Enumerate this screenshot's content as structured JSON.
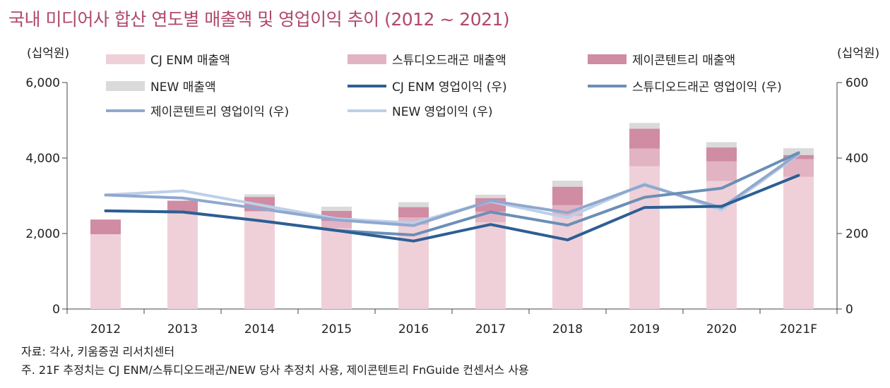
{
  "title": "국내 미디어사 합산 연도별 매출액 및 영업이익 추이 (2012 ~ 2021)",
  "notes": {
    "source": "자료: 각사, 키움증권 리서치센터",
    "footnote": "주. 21F 추정치는 CJ ENM/스튜디오드래곤/NEW 당사 추정치 사용, 제이콘텐트리 FnGuide 컨센서스 사용"
  },
  "chart_data": {
    "type": "bar",
    "stacked": true,
    "categories": [
      "2012",
      "2013",
      "2014",
      "2015",
      "2016",
      "2017",
      "2018",
      "2019",
      "2020",
      "2021F"
    ],
    "y_left": {
      "label": "(십억원)",
      "ylim": [
        0,
        6000
      ],
      "ticks": [
        "0",
        "2,000",
        "4,000",
        "6,000"
      ]
    },
    "y_right": {
      "label": "(십억원)",
      "ylim": [
        0,
        600
      ],
      "ticks": [
        "0",
        "200",
        "400",
        "600"
      ]
    },
    "grid": false,
    "legend_position": "top",
    "bar_series": [
      {
        "name": "CJ ENM 매출액",
        "color": "#efd0d9",
        "values": [
          1980,
          2560,
          2590,
          2140,
          2230,
          2300,
          2460,
          3780,
          3390,
          3500
        ]
      },
      {
        "name": "스튜디오드래곤 매출액",
        "color": "#e2b3c3",
        "values": [
          0,
          0,
          0,
          190,
          200,
          280,
          290,
          470,
          520,
          470
        ]
      },
      {
        "name": "제이콘텐트리 매출액",
        "color": "#cf8ca3",
        "values": [
          390,
          310,
          380,
          270,
          270,
          360,
          490,
          530,
          370,
          110
        ]
      },
      {
        "name": "NEW 매출액",
        "color": "#dadada",
        "values": [
          0,
          0,
          70,
          110,
          130,
          90,
          160,
          150,
          140,
          180
        ]
      }
    ],
    "line_series": [
      {
        "name": "CJ ENM 영업이익 (우)",
        "color": "#2c5f94",
        "values": [
          260,
          257,
          234,
          208,
          180,
          224,
          183,
          269,
          272,
          354
        ]
      },
      {
        "name": "스튜디오드래곤 영업이익 (우)",
        "color": "#6b8fb6",
        "values": [
          260,
          257,
          234,
          208,
          196,
          257,
          222,
          296,
          320,
          414
        ]
      },
      {
        "name": "제이콘텐트리 영업이익 (우)",
        "color": "#90a8cf",
        "values": [
          302,
          294,
          266,
          236,
          221,
          287,
          255,
          329,
          268,
          412
        ]
      },
      {
        "name": "NEW 영업이익 (우)",
        "color": "#bcd0e8",
        "values": [
          302,
          313,
          276,
          239,
          228,
          285,
          242,
          332,
          262,
          409
        ]
      }
    ]
  }
}
